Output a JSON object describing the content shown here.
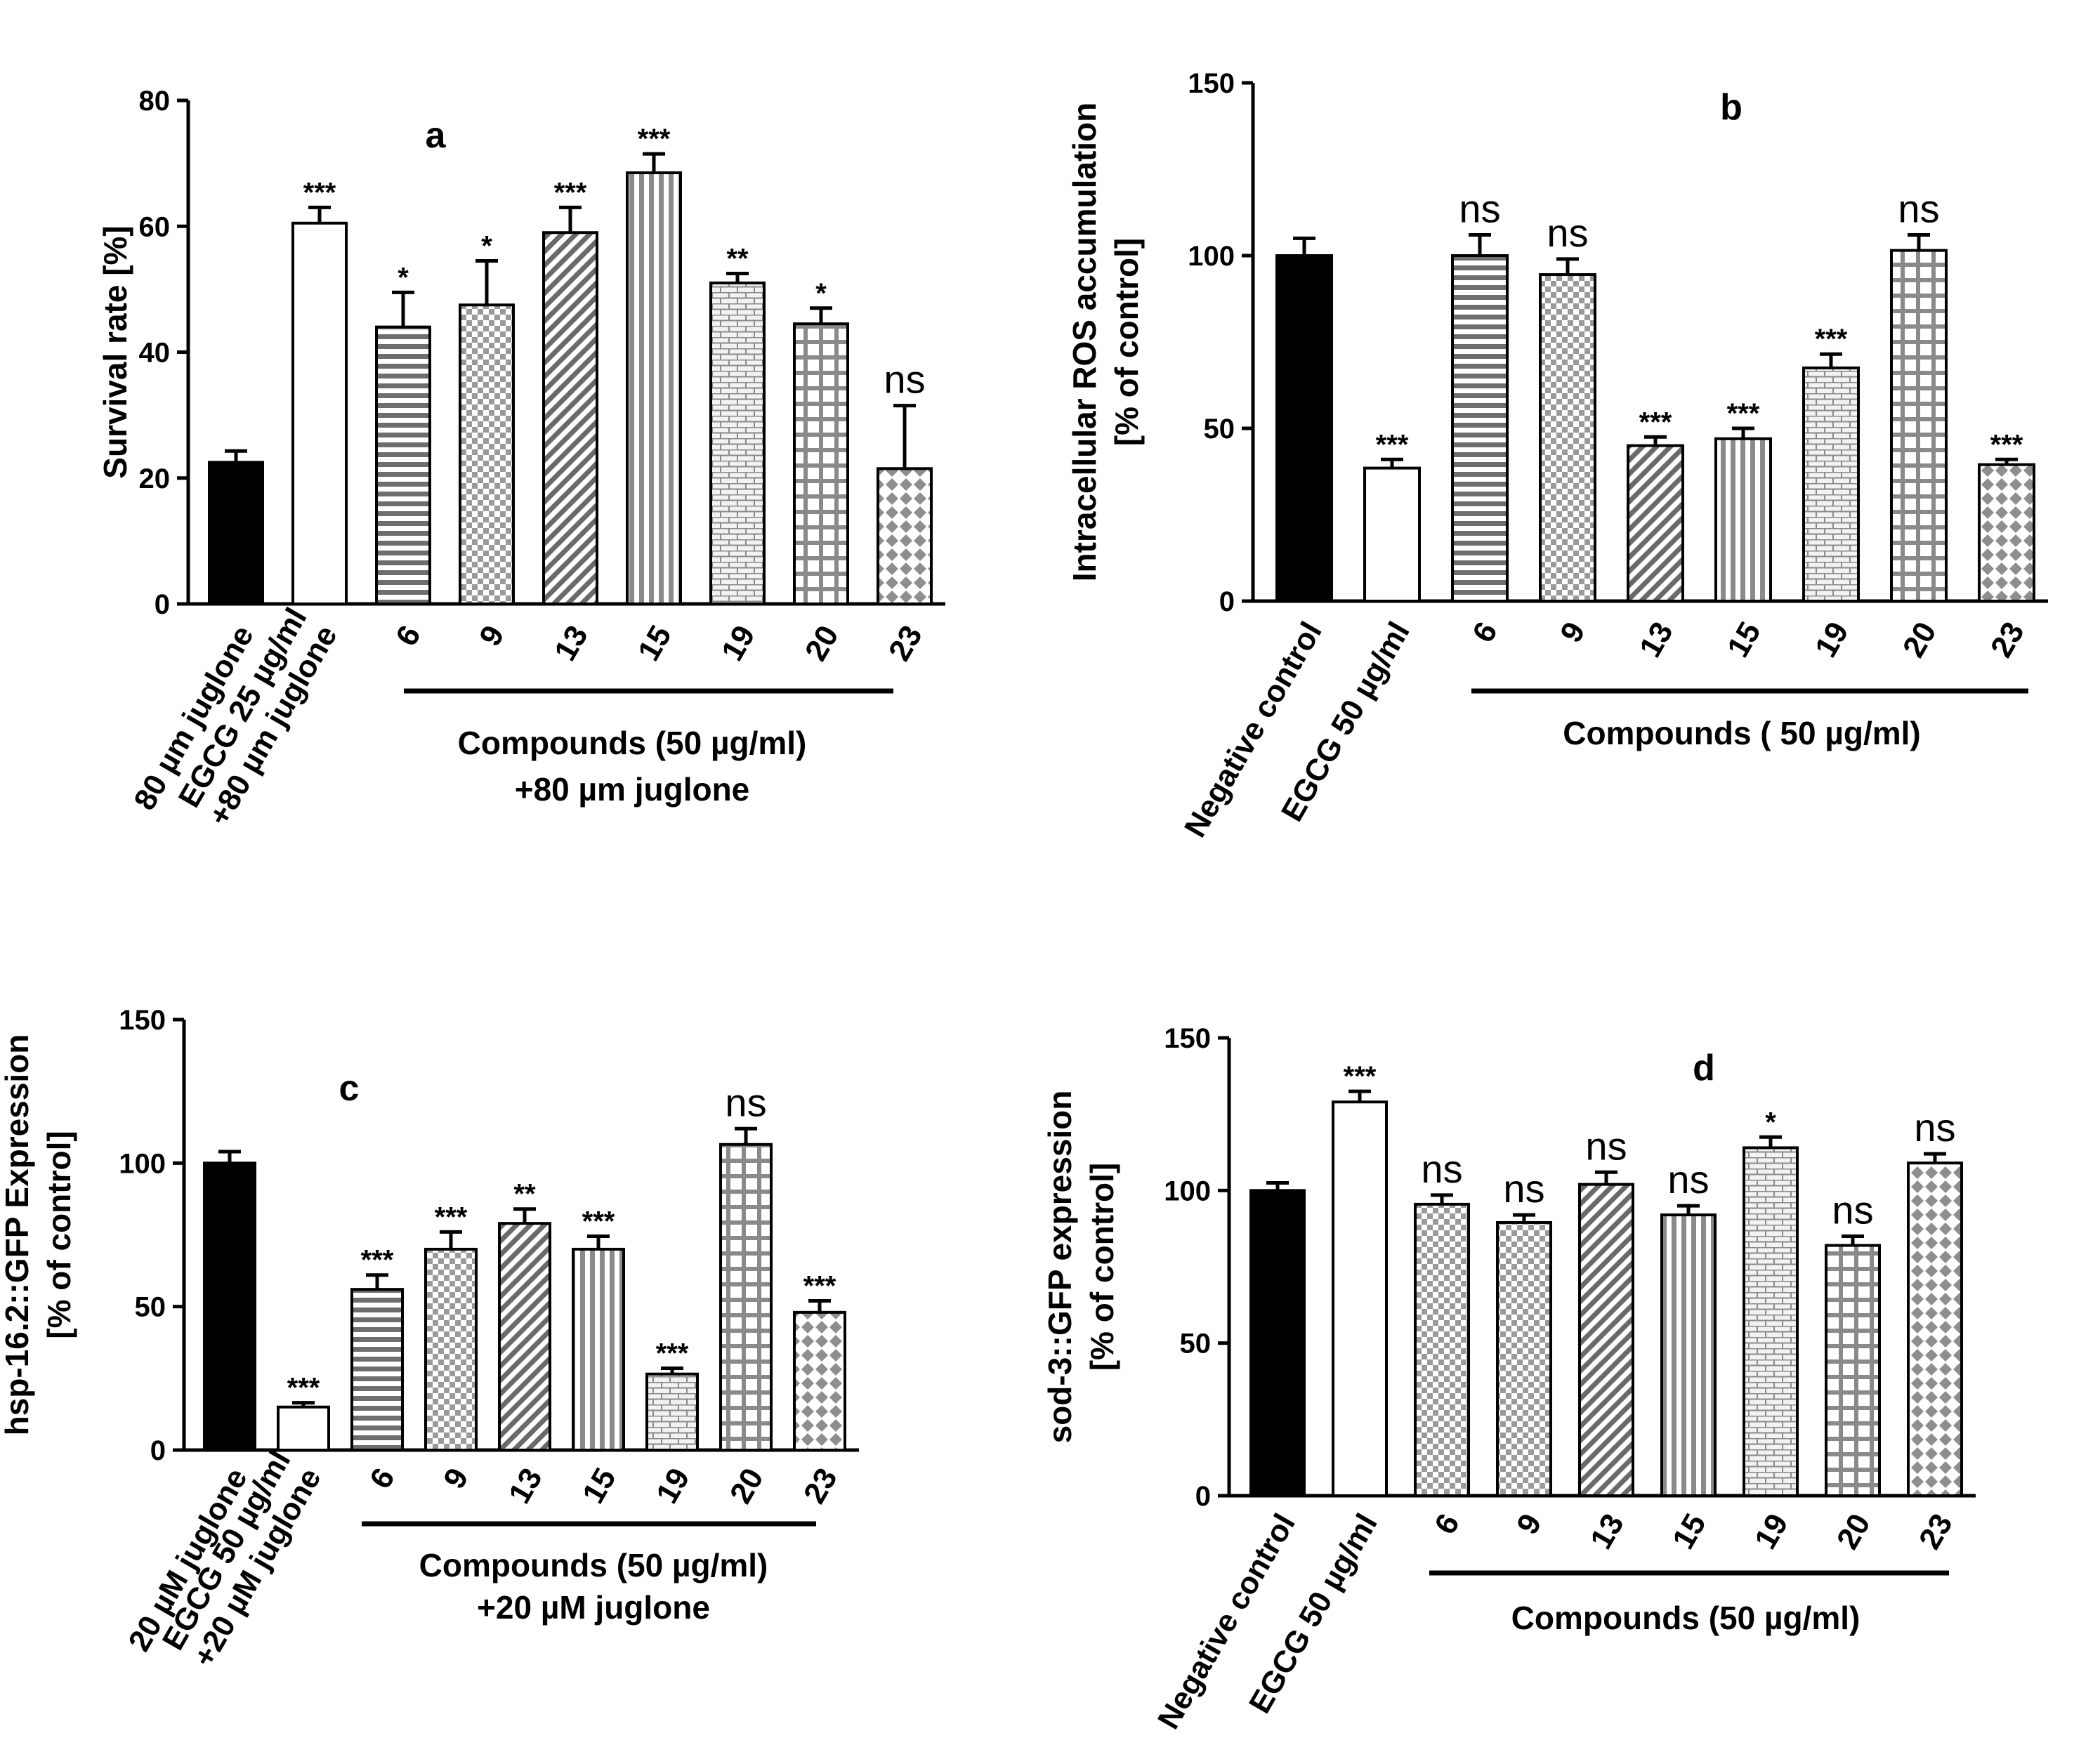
{
  "chart_data": [
    {
      "type": "bar",
      "panel": "a",
      "ylabel_lines": [
        "Survival rate [%]"
      ],
      "ylim": [
        0,
        80
      ],
      "yticks": [
        0,
        20,
        40,
        60,
        80
      ],
      "categories": [
        "80 µm juglone",
        "EGCG 25 µg/ml\n+80 µm juglone",
        "6",
        "9",
        "13",
        "15",
        "19",
        "20",
        "23"
      ],
      "values": [
        22.5,
        60.5,
        44,
        47.5,
        59,
        68.5,
        51,
        44.5,
        21.5
      ],
      "errors": [
        1.8,
        2.5,
        5.5,
        7,
        4,
        3,
        1.5,
        2.5,
        10
      ],
      "significance": [
        "",
        "***",
        "*",
        "*",
        "***",
        "***",
        "**",
        "*",
        "ns"
      ],
      "patterns": [
        "solid",
        "white",
        "hstripe",
        "checker",
        "diag",
        "vstripe",
        "brick",
        "grid",
        "diamond"
      ],
      "group_label": [
        "Compounds (50 µg/ml)",
        "+80 µm juglone"
      ],
      "group_span": [
        2,
        8
      ]
    },
    {
      "type": "bar",
      "panel": "b",
      "ylabel_lines": [
        "Intracellular ROS accumulation",
        "[% of control]"
      ],
      "ylim": [
        0,
        150
      ],
      "yticks": [
        0,
        50,
        100,
        150
      ],
      "categories": [
        "Negative control",
        "EGCG 50 µg/ml",
        "6",
        "9",
        "13",
        "15",
        "19",
        "20",
        "23"
      ],
      "values": [
        100,
        38.5,
        100,
        94.5,
        45,
        47,
        67.5,
        101.5,
        39.5
      ],
      "errors": [
        5,
        2.5,
        6,
        4.5,
        2.5,
        3,
        4,
        4.5,
        1.5
      ],
      "significance": [
        "",
        "***",
        "ns",
        "ns",
        "***",
        "***",
        "***",
        "ns",
        "***"
      ],
      "patterns": [
        "solid",
        "white",
        "hstripe",
        "checker",
        "diag",
        "vstripe",
        "brick",
        "grid",
        "diamond"
      ],
      "group_label": [
        "Compounds ( 50 µg/ml)"
      ],
      "group_span": [
        2,
        8
      ]
    },
    {
      "type": "bar",
      "panel": "c",
      "ylabel_lines": [
        "hsp-16.2::GFP Expression",
        "[% of control]"
      ],
      "ylim": [
        0,
        150
      ],
      "yticks": [
        0,
        50,
        100,
        150
      ],
      "categories": [
        "20 µM juglone",
        "EGCG 50 µg/ml\n+20 µM juglone",
        "6",
        "9",
        "13",
        "15",
        "19",
        "20",
        "23"
      ],
      "values": [
        100,
        15,
        56,
        70,
        79,
        70,
        26.5,
        106.5,
        48
      ],
      "errors": [
        4,
        1.5,
        5,
        6,
        5,
        4.5,
        2,
        5.5,
        4
      ],
      "significance": [
        "",
        "***",
        "***",
        "***",
        "**",
        "***",
        "***",
        "ns",
        "***"
      ],
      "patterns": [
        "solid",
        "white",
        "hstripe",
        "checker",
        "diag",
        "vstripe",
        "brick",
        "grid",
        "diamond"
      ],
      "group_label": [
        "Compounds  (50 µg/ml)",
        "+20 µM juglone"
      ],
      "group_span": [
        2,
        8
      ]
    },
    {
      "type": "bar",
      "panel": "d",
      "ylabel_lines": [
        "sod-3::GFP expression",
        "[% of control]"
      ],
      "ylim": [
        0,
        150
      ],
      "yticks": [
        0,
        50,
        100,
        150
      ],
      "categories": [
        "Negative control",
        "EGCG 50 µg/ml",
        "6",
        "9",
        "13",
        "15",
        "19",
        "20",
        "23"
      ],
      "values": [
        100,
        129,
        95.5,
        89.5,
        102,
        92,
        114,
        82,
        109
      ],
      "errors": [
        2.5,
        3.5,
        3,
        2.5,
        4,
        3,
        3.5,
        3,
        3
      ],
      "significance": [
        "",
        "***",
        "ns",
        "ns",
        "ns",
        "ns",
        "*",
        "ns",
        "ns"
      ],
      "patterns": [
        "solid",
        "white",
        "checker",
        "checker",
        "diag",
        "vstripe",
        "brick",
        "grid",
        "diamond"
      ],
      "group_label": [
        "Compounds (50 µg/ml)"
      ],
      "group_span": [
        2,
        8
      ]
    }
  ]
}
